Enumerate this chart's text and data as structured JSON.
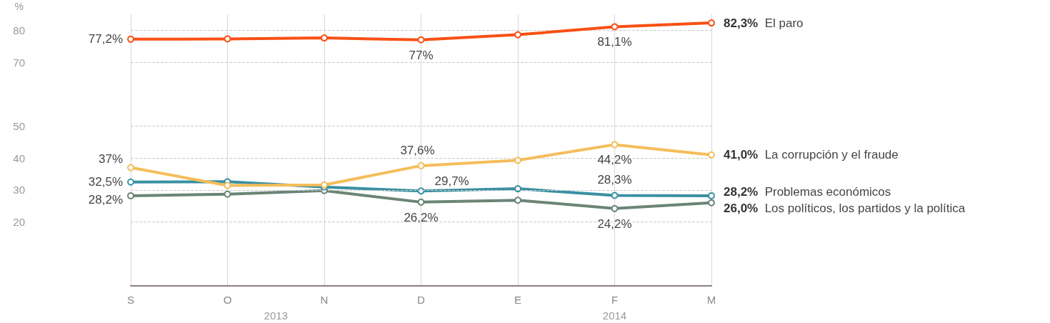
{
  "chart_data": {
    "type": "line",
    "ylabel": "%",
    "categories": [
      "S",
      "O",
      "N",
      "D",
      "E",
      "F",
      "M"
    ],
    "series": [
      {
        "name": "El paro",
        "color": "#fa5014",
        "values": [
          77.2,
          77.3,
          77.6,
          77,
          78.6,
          81.1,
          82.3
        ],
        "value_labels": [
          "77,2%",
          null,
          null,
          "77%",
          null,
          "81,1%",
          "82,3%"
        ]
      },
      {
        "name": "La corrupción y el fraude",
        "color": "#f5bd5a",
        "values": [
          37,
          31.4,
          31.6,
          37.6,
          39.3,
          44.2,
          41.0
        ],
        "value_labels": [
          "37%",
          null,
          null,
          "37,6%",
          null,
          "44,2%",
          "41,0%"
        ]
      },
      {
        "name": "Problemas económicos",
        "color": "#3a90a2",
        "values": [
          32.5,
          32.6,
          30.9,
          29.7,
          30.4,
          28.3,
          28.2
        ],
        "value_labels": [
          "32,5%",
          null,
          null,
          "29,7%",
          null,
          "28,3%",
          "28,2%"
        ]
      },
      {
        "name": "Los políticos, los partidos y la política",
        "color": "#6b8476",
        "values": [
          28.2,
          28.7,
          29.8,
          26.2,
          26.8,
          24.2,
          26.0
        ],
        "value_labels": [
          "28,2%",
          null,
          null,
          "26,2%",
          null,
          "24,2%",
          "26,0%"
        ]
      }
    ],
    "ylim": [
      0,
      85
    ],
    "yticks": [
      20,
      30,
      40,
      50,
      70,
      80
    ],
    "annotations": [
      "2013",
      "2014"
    ],
    "grid": true,
    "marker": "circle",
    "line_style": "solid"
  }
}
